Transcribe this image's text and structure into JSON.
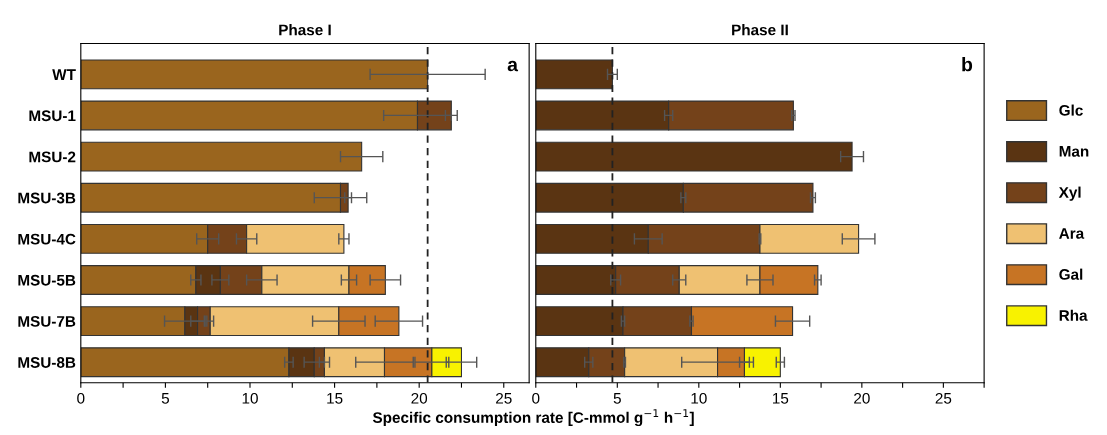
{
  "chart_data": [
    {
      "type": "bar",
      "orientation": "horizontal",
      "stacked": true,
      "title": "Phase I",
      "xlabel": "Specific consumption rate [C-mmol g$^{−1}$ h$^{−1}$]",
      "annotations": [
        "a"
      ],
      "categories": [
        "WT",
        "MSU-1",
        "MSU-2",
        "MSU-3B",
        "MSU-4C",
        "MSU-5B",
        "MSU-7B",
        "MSU-8B"
      ],
      "xlim": [
        0,
        26.5
      ],
      "xticks": [
        0,
        {
          "value": 2.5,
          "label": null
        },
        5,
        {
          "value": 7.5,
          "label": null
        },
        10,
        {
          "value": 12.5,
          "label": null
        },
        15,
        {
          "value": 17.5,
          "label": null
        },
        20,
        {
          "value": 22.5,
          "label": null
        },
        25
      ],
      "ref_lines": [
        {
          "axis": "x",
          "value": 20.5,
          "line_style": "dashed",
          "color": "#222222"
        }
      ],
      "series": [
        {
          "color": "#9a651e",
          "values": [
            20.5,
            19.9,
            16.6,
            15.35,
            7.5,
            6.8,
            6.15,
            12.3
          ],
          "errors": [
            3.4,
            2.0,
            1.25,
            1.55,
            0.65,
            0.3,
            1.2,
            0.25
          ]
        },
        {
          "color": "#5a3412",
          "values": [
            null,
            null,
            null,
            null,
            null,
            1.45,
            0.75,
            1.5
          ],
          "errors": [
            null,
            null,
            null,
            null,
            null,
            0.5,
            0.4,
            0.6
          ]
        },
        {
          "color": "#74421a",
          "values": [
            null,
            2.0,
            null,
            0.45,
            2.3,
            2.45,
            0.75,
            0.6
          ],
          "errors": [
            null,
            0.35,
            null,
            0.2,
            0.6,
            0.9,
            0.2,
            0.3
          ]
        },
        {
          "color": "#efc172",
          "values": [
            null,
            null,
            null,
            null,
            5.75,
            5.15,
            7.6,
            3.55
          ],
          "errors": [
            null,
            null,
            null,
            null,
            0.3,
            0.45,
            1.55,
            1.7
          ]
        },
        {
          "color": "#c77424",
          "values": [
            null,
            null,
            null,
            null,
            null,
            2.15,
            3.55,
            2.8
          ],
          "errors": [
            null,
            null,
            null,
            null,
            null,
            0.9,
            1.4,
            1.0
          ]
        },
        {
          "color": "#f8f200",
          "values": [
            null,
            null,
            null,
            null,
            null,
            null,
            null,
            1.75
          ],
          "errors": [
            null,
            null,
            null,
            null,
            null,
            null,
            null,
            0.9
          ]
        }
      ]
    },
    {
      "type": "bar",
      "orientation": "horizontal",
      "stacked": true,
      "title": "Phase II",
      "annotations": [
        "b"
      ],
      "tick_labels": "x",
      "legend": "right",
      "categories": [
        null,
        null,
        null,
        null,
        null,
        null,
        null,
        null
      ],
      "xlim": [
        0,
        27.5
      ],
      "xticks": [
        0,
        {
          "value": 2.5,
          "label": null
        },
        5,
        {
          "value": 7.5,
          "label": null
        },
        10,
        {
          "value": 12.5,
          "label": null
        },
        15,
        {
          "value": 17.5,
          "label": null
        },
        20,
        {
          "value": 22.5,
          "label": null
        },
        25,
        {
          "value": 27.5,
          "label": null
        }
      ],
      "ref_lines": [
        {
          "axis": "x",
          "value": 4.7,
          "line_style": "dashed",
          "color": "#222222"
        }
      ],
      "series": [
        {
          "name": "Glc",
          "color": "#9a651e",
          "values": [
            null,
            null,
            null,
            null,
            null,
            null,
            null,
            null
          ],
          "errors": [
            null,
            null,
            null,
            null,
            null,
            null,
            null,
            null
          ]
        },
        {
          "name": "Man",
          "color": "#5a3412",
          "values": [
            4.7,
            8.15,
            19.4,
            9.05,
            6.9,
            4.9,
            5.35,
            3.25
          ],
          "errors": [
            0.3,
            0.25,
            0.7,
            0.15,
            0.85,
            0.3,
            0.1,
            0.25
          ]
        },
        {
          "name": "Xyl",
          "color": "#74421a",
          "values": [
            null,
            7.65,
            null,
            7.95,
            6.85,
            3.9,
            4.2,
            2.2
          ],
          "errors": [
            null,
            0.1,
            null,
            0.15,
            0.05,
            0.4,
            0.1,
            0.05
          ]
        },
        {
          "name": "Ara",
          "color": "#efc172",
          "values": [
            null,
            null,
            null,
            null,
            6.05,
            4.95,
            null,
            5.7
          ],
          "errors": [
            null,
            null,
            null,
            null,
            1.0,
            0.8,
            null,
            2.2
          ]
        },
        {
          "name": "Gal",
          "color": "#c77424",
          "values": [
            null,
            null,
            null,
            null,
            null,
            3.55,
            6.2,
            1.65
          ],
          "errors": [
            null,
            null,
            null,
            null,
            null,
            0.2,
            1.05,
            0.3
          ]
        },
        {
          "name": "Rha",
          "color": "#f8f200",
          "values": [
            null,
            null,
            null,
            null,
            null,
            null,
            null,
            2.2
          ],
          "errors": [
            null,
            null,
            null,
            null,
            null,
            null,
            null,
            0.25
          ]
        }
      ]
    }
  ]
}
